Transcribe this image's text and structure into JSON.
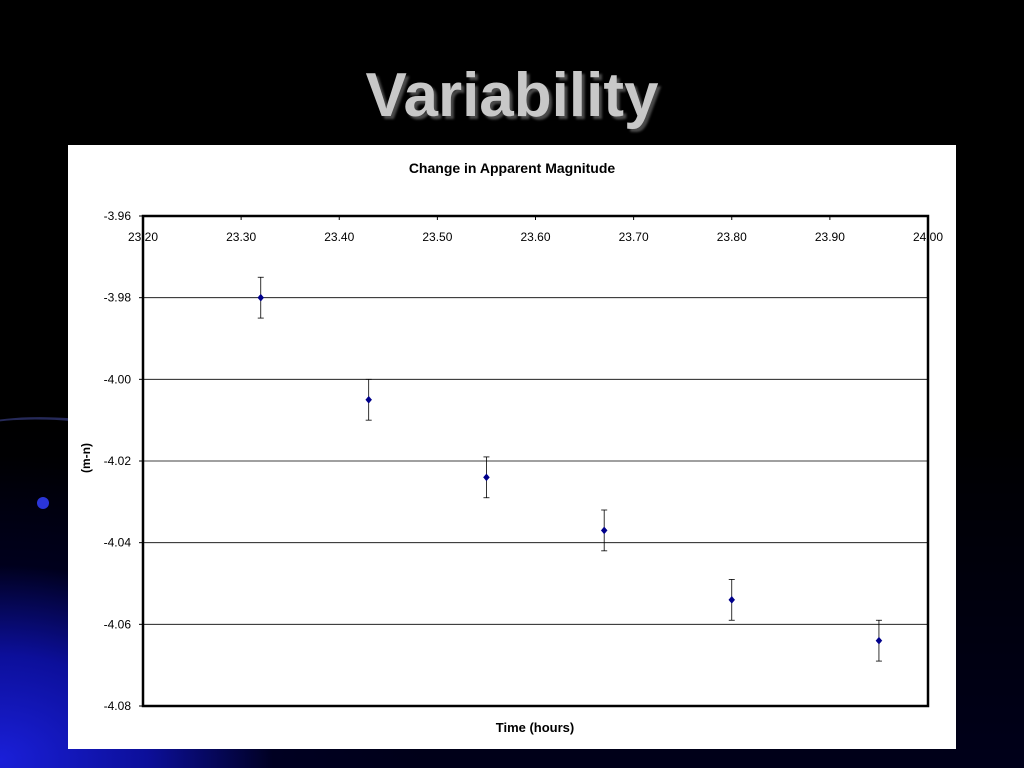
{
  "slide": {
    "title": "Variability"
  },
  "chart_data": {
    "type": "scatter",
    "title": "Change in Apparent Magnitude",
    "xlabel": "Time (hours)",
    "ylabel": "(m-n)",
    "xlim": [
      23.2,
      24.0
    ],
    "ylim": [
      -4.08,
      -3.96
    ],
    "x_ticks": [
      "23.20",
      "23.30",
      "23.40",
      "23.50",
      "23.60",
      "23.70",
      "23.80",
      "23.90",
      "24.00"
    ],
    "y_ticks": [
      "-3.96",
      "-3.98",
      "-4.00",
      "-4.02",
      "-4.04",
      "-4.06",
      "-4.08"
    ],
    "x_axis_position": "top",
    "grid": "horizontal",
    "legend": "none",
    "marker_color": "#00008b",
    "points": [
      {
        "x": 23.32,
        "y": -3.98,
        "err": 0.005
      },
      {
        "x": 23.43,
        "y": -4.005,
        "err": 0.005
      },
      {
        "x": 23.55,
        "y": -4.024,
        "err": 0.005
      },
      {
        "x": 23.67,
        "y": -4.037,
        "err": 0.005
      },
      {
        "x": 23.8,
        "y": -4.054,
        "err": 0.005
      },
      {
        "x": 23.95,
        "y": -4.064,
        "err": 0.005
      }
    ]
  }
}
